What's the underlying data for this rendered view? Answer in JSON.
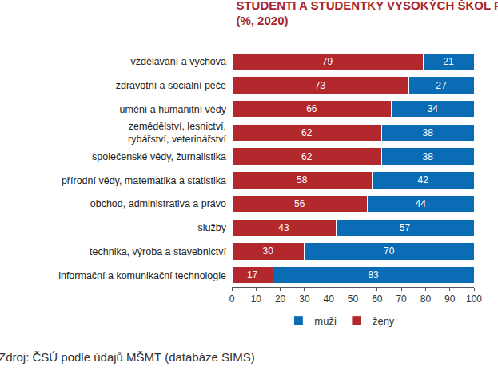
{
  "chart_data": {
    "type": "bar",
    "title": "STUDENTI A STUDENTKY VYSOKÝCH ŠKOL PODLE OBORU STUDIA",
    "subtitle": "(%, 2020)",
    "source": "Zdroj: ČSÚ podle údajů MŠMT (databáze SIMS)",
    "orientation": "horizontal",
    "stacked": true,
    "data_labels": true,
    "grid": false,
    "legend": "bottom",
    "categories": [
      "vzdělávání a výchova",
      "zdravotní a sociální péče",
      "umění a humanitní vědy",
      "zemědělství, lesnictví, rybářství, veterinářství",
      "společenské vědy, žurnalistika",
      "přírodní vědy, matematika a statistika",
      "obchod, administrativa a právo",
      "služby",
      "technika, výroba a stavebnictví",
      "informační a komunikační technologie"
    ],
    "series": [
      {
        "name": "ženy",
        "color": "#b3282d",
        "values": [
          79,
          73,
          66,
          62,
          62,
          58,
          56,
          43,
          30,
          17
        ]
      },
      {
        "name": "muži",
        "color": "#0a6cb4",
        "values": [
          21,
          27,
          34,
          38,
          38,
          42,
          44,
          57,
          70,
          83
        ]
      }
    ],
    "xlim": [
      0,
      100
    ],
    "xticks": [
      0,
      10,
      20,
      30,
      40,
      50,
      60,
      70,
      80,
      90,
      100
    ]
  }
}
